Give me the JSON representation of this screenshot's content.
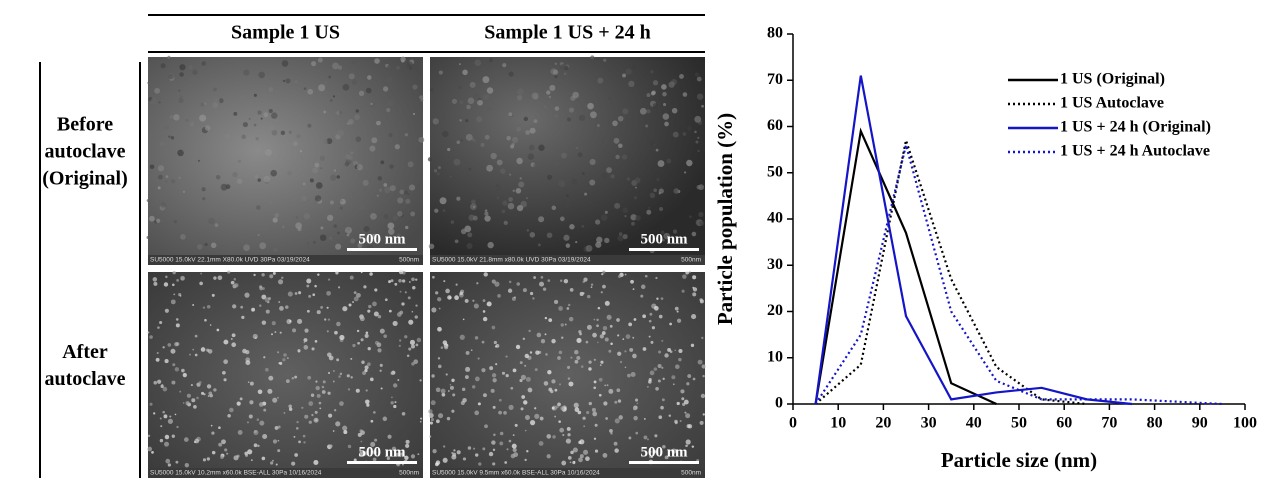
{
  "figure": {
    "columns": [
      "Sample 1 US",
      "Sample 1 US + 24 h"
    ],
    "rows": [
      [
        "Before",
        "autoclave",
        "(Original)"
      ],
      [
        "After",
        "autoclave"
      ]
    ],
    "images": [
      [
        {
          "scale": "500 nm",
          "caption": "SU5000 15.0kV 22.1mm X80.0k UVD 30Pa 03/19/2024",
          "caption_scale": "500nm"
        },
        {
          "scale": "500 nm",
          "caption": "SU5000 15.0kV 21.8mm x80.0k UVD 30Pa 03/19/2024",
          "caption_scale": "500nm"
        }
      ],
      [
        {
          "scale": "500 nm",
          "caption": "SU5000 15.0kV 10.2mm x60.0k BSE-ALL 30Pa 10/16/2024",
          "caption_scale": "500nm"
        },
        {
          "scale": "500 nm",
          "caption": "SU5000 15.0kV 9.5mm x60.0k BSE-ALL 30Pa 10/16/2024",
          "caption_scale": "500nm"
        }
      ]
    ]
  },
  "chart_data": {
    "type": "line",
    "x_label": "Particle size (nm)",
    "y_label": "Particle population (%)",
    "xlim": [
      0,
      100
    ],
    "xticks": [
      0,
      10,
      20,
      30,
      40,
      50,
      60,
      70,
      80,
      90,
      100
    ],
    "ylim": [
      0,
      80
    ],
    "yticks": [
      0,
      10,
      20,
      30,
      40,
      50,
      60,
      70,
      80
    ],
    "legend": "upper right",
    "series": [
      {
        "name": "1 US (Original)",
        "color": "#000000",
        "style": "solid",
        "x": [
          5,
          15,
          25,
          35,
          45
        ],
        "values": [
          0,
          59,
          37,
          4.5,
          0
        ]
      },
      {
        "name": "1 US  Autoclave",
        "color": "#000000",
        "style": "dotted",
        "x": [
          5,
          15,
          25,
          35,
          45,
          55,
          65
        ],
        "values": [
          0,
          8.5,
          57,
          27,
          8,
          1,
          0
        ]
      },
      {
        "name": "1 US + 24 h (Original)",
        "color": "#1515c8",
        "style": "solid",
        "x": [
          5,
          15,
          25,
          35,
          45,
          55,
          65,
          75
        ],
        "values": [
          0,
          71,
          19,
          1,
          2.5,
          3.5,
          1,
          0
        ]
      },
      {
        "name": "1 US + 24 h Autoclave",
        "color": "#1515c8",
        "style": "dotted",
        "x": [
          5,
          15,
          25,
          35,
          45,
          55,
          65,
          75,
          85,
          95
        ],
        "values": [
          0,
          15,
          56,
          20,
          5,
          1,
          1,
          1,
          0.5,
          0
        ]
      }
    ]
  }
}
